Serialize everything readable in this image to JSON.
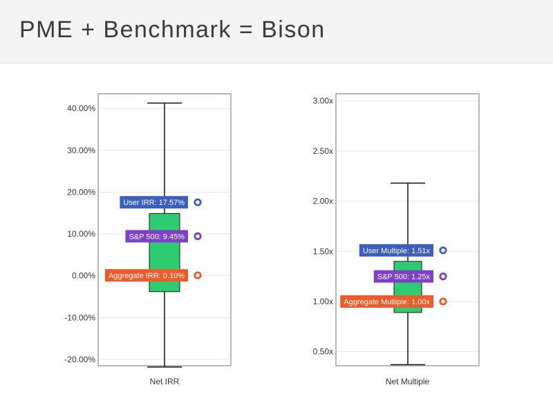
{
  "title": "PME + Benchmark = Bison",
  "colors": {
    "box": "#2ecc71",
    "user": "#3a5fbf",
    "sp500": "#7e3fc9",
    "aggregate": "#f05a28",
    "axis": "#9aa0b4",
    "grid": "#e6e6e6"
  },
  "chart_data": [
    {
      "type": "box",
      "xlabel": "Net IRR",
      "ylim": [
        -21.5,
        43.5
      ],
      "yticks": [
        -20,
        -10,
        0,
        10,
        20,
        30,
        40
      ],
      "ytick_labels": [
        "-20.00%",
        "-10.00%",
        "0.00%",
        "10.00%",
        "20.00%",
        "30.00%",
        "40.00%"
      ],
      "box": {
        "min": -21.8,
        "q1": -3.8,
        "q3": 14.9,
        "max": 41.3
      },
      "markers": [
        {
          "name": "user",
          "label": "User IRR: 17.57%",
          "value": 17.57
        },
        {
          "name": "sp500",
          "label": "S&P 500: 9.45%",
          "value": 9.45
        },
        {
          "name": "aggregate",
          "label": "Aggregate IRR: 0.10%",
          "value": 0.1
        }
      ]
    },
    {
      "type": "box",
      "xlabel": "Net Multiple",
      "ylim": [
        0.36,
        3.07
      ],
      "yticks": [
        0.5,
        1.0,
        1.5,
        2.0,
        2.5,
        3.0
      ],
      "ytick_labels": [
        "0.50x",
        "1.00x",
        "1.50x",
        "2.00x",
        "2.50x",
        "3.00x"
      ],
      "box": {
        "min": 0.37,
        "q1": 0.89,
        "q3": 1.4,
        "max": 2.18
      },
      "markers": [
        {
          "name": "user",
          "label": "User Multiple: 1.51x",
          "value": 1.51
        },
        {
          "name": "sp500",
          "label": "S&P 500: 1.25x",
          "value": 1.25
        },
        {
          "name": "aggregate",
          "label": "Aggregate Multiple: 1.00x",
          "value": 1.0
        }
      ]
    }
  ]
}
